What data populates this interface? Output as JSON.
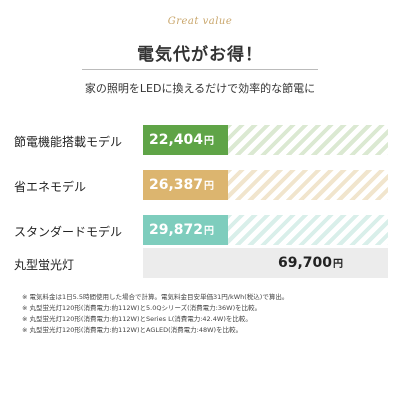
{
  "header": {
    "tagline": "Great value",
    "title": "電気代がお得！",
    "subtitle": "家の照明をLEDに換えるだけで効率的な節電に"
  },
  "chart_data": {
    "type": "bar",
    "orientation": "horizontal",
    "unit": "円",
    "xlim": [
      0,
      69700
    ],
    "categories": [
      "節電機能搭載モデル",
      "省エネモデル",
      "スタンダードモデル",
      "丸型蛍光灯"
    ],
    "values": [
      22404,
      26387,
      29872,
      69700
    ],
    "value_labels": [
      "22,404",
      "26,387",
      "29,872",
      "69,700"
    ],
    "colors": [
      "#5fa447",
      "#dcb56f",
      "#7ecdbd",
      "#ececec"
    ],
    "stripe_colors": [
      "#dbe9d2",
      "#f1e5cd",
      "#d9efea",
      "#ececec"
    ]
  },
  "notes": [
    "※ 電気料金は1日5.5時間使用した場合で計算。電気料金目安単価31円/kWh(税込)で算出。",
    "※ 丸型蛍光灯120形(消費電力:約112W)と5.0Qシリーズ(消費電力:36W)を比較。",
    "※ 丸型蛍光灯120形(消費電力:約112W)とSeries L(消費電力:42.4W)を比較。",
    "※ 丸型蛍光灯120形(消費電力:約112W)とAGLED(消費電力:48W)を比較。"
  ]
}
